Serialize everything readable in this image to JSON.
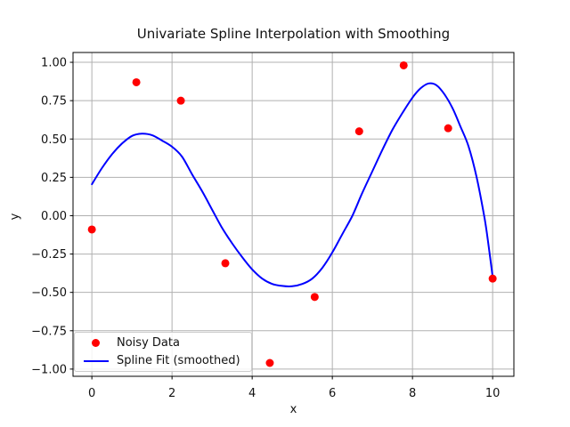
{
  "figure": {
    "title": "Univariate Spline Interpolation with Smoothing",
    "xlabel": "x",
    "ylabel": "y"
  },
  "legend": {
    "items": [
      {
        "label": "Noisy Data",
        "marker": "red-dot",
        "color": "#ff0000"
      },
      {
        "label": "Spline Fit (smoothed)",
        "marker": "blue-line",
        "color": "#0000ff"
      }
    ],
    "position": "lower-left"
  },
  "colors": {
    "background": "#ffffff",
    "grid": "#b0b0b0",
    "axis": "#000000",
    "text": "#111111",
    "scatter": "#ff0000",
    "spline": "#0000ff"
  },
  "chart_data": {
    "type": "scatter",
    "title": "Univariate Spline Interpolation with Smoothing",
    "xlabel": "x",
    "ylabel": "y",
    "xlim": [
      -0.47,
      10.53
    ],
    "ylim": [
      -1.047,
      1.064
    ],
    "grid": true,
    "legend_position": "lower left",
    "xticks": {
      "values": [
        0,
        2,
        4,
        6,
        8,
        10
      ],
      "labels": [
        "0",
        "2",
        "4",
        "6",
        "8",
        "10"
      ]
    },
    "yticks": {
      "values": [
        1.0,
        0.75,
        0.5,
        0.25,
        0.0,
        -0.25,
        -0.5,
        -0.75,
        -1.0
      ],
      "labels": [
        "1.00",
        "0.75",
        "0.50",
        "0.25",
        "0.00",
        "−0.25",
        "−0.50",
        "−0.75",
        "−1.00"
      ]
    },
    "series": [
      {
        "name": "Noisy Data",
        "type": "scatter",
        "color": "#ff0000",
        "marker": "circle",
        "points": [
          [
            0.0,
            -0.09
          ],
          [
            1.11,
            0.87
          ],
          [
            2.22,
            0.75
          ],
          [
            3.33,
            -0.31
          ],
          [
            4.44,
            -0.96
          ],
          [
            5.56,
            -0.53
          ],
          [
            6.67,
            0.55
          ],
          [
            7.78,
            0.98
          ],
          [
            8.89,
            0.57
          ],
          [
            10.0,
            -0.41
          ]
        ]
      },
      {
        "name": "Spline Fit (smoothed)",
        "type": "line",
        "color": "#0000ff",
        "points": [
          [
            0.0,
            0.205
          ],
          [
            0.25,
            0.31
          ],
          [
            0.5,
            0.4
          ],
          [
            0.75,
            0.47
          ],
          [
            1.0,
            0.52
          ],
          [
            1.25,
            0.535
          ],
          [
            1.5,
            0.525
          ],
          [
            1.75,
            0.49
          ],
          [
            2.0,
            0.45
          ],
          [
            2.25,
            0.385
          ],
          [
            2.5,
            0.27
          ],
          [
            2.75,
            0.16
          ],
          [
            3.0,
            0.04
          ],
          [
            3.25,
            -0.08
          ],
          [
            3.5,
            -0.18
          ],
          [
            3.75,
            -0.27
          ],
          [
            4.0,
            -0.35
          ],
          [
            4.25,
            -0.41
          ],
          [
            4.5,
            -0.445
          ],
          [
            4.75,
            -0.458
          ],
          [
            5.0,
            -0.46
          ],
          [
            5.25,
            -0.445
          ],
          [
            5.5,
            -0.41
          ],
          [
            5.75,
            -0.34
          ],
          [
            6.0,
            -0.24
          ],
          [
            6.25,
            -0.12
          ],
          [
            6.5,
            0.0
          ],
          [
            6.75,
            0.15
          ],
          [
            7.0,
            0.29
          ],
          [
            7.25,
            0.43
          ],
          [
            7.5,
            0.56
          ],
          [
            7.75,
            0.67
          ],
          [
            8.0,
            0.77
          ],
          [
            8.2,
            0.83
          ],
          [
            8.4,
            0.862
          ],
          [
            8.6,
            0.85
          ],
          [
            8.8,
            0.79
          ],
          [
            9.0,
            0.7
          ],
          [
            9.2,
            0.58
          ],
          [
            9.4,
            0.45
          ],
          [
            9.6,
            0.25
          ],
          [
            9.8,
            -0.02
          ],
          [
            9.9,
            -0.2
          ],
          [
            10.0,
            -0.4
          ]
        ]
      }
    ]
  }
}
